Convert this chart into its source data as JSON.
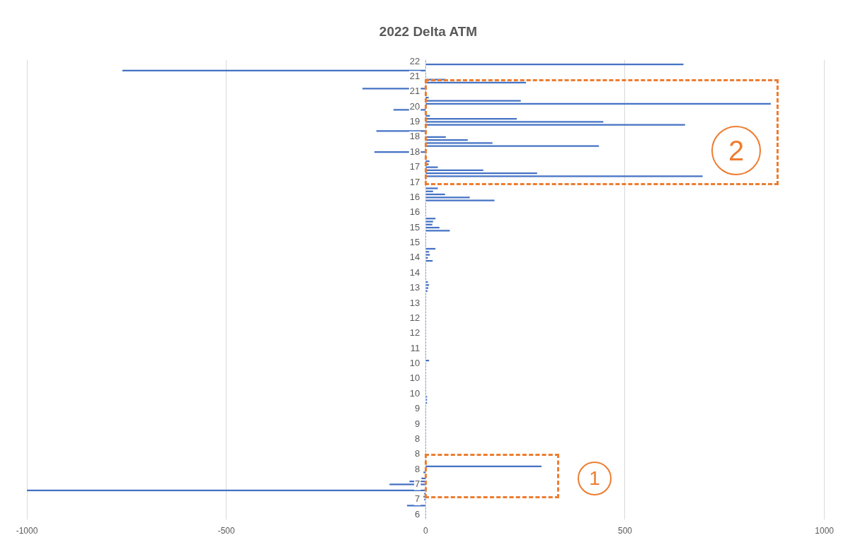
{
  "chart_data": {
    "type": "bar",
    "orientation": "horizontal",
    "title": "2022 Delta ATM",
    "categories": [
      "22",
      null,
      null,
      null,
      null,
      "21",
      null,
      null,
      null,
      null,
      "21",
      null,
      null,
      null,
      null,
      "20",
      null,
      null,
      null,
      null,
      "19",
      null,
      null,
      null,
      null,
      "18",
      null,
      null,
      null,
      null,
      "18",
      null,
      null,
      null,
      null,
      "17",
      null,
      null,
      null,
      null,
      "17",
      null,
      null,
      null,
      null,
      "16",
      null,
      null,
      null,
      null,
      "16",
      null,
      null,
      null,
      null,
      "15",
      null,
      null,
      null,
      null,
      "15",
      null,
      null,
      null,
      null,
      "14",
      null,
      null,
      null,
      null,
      "14",
      null,
      null,
      null,
      null,
      "13",
      null,
      null,
      null,
      null,
      "13",
      null,
      null,
      null,
      null,
      "12",
      null,
      null,
      null,
      null,
      "12",
      null,
      null,
      null,
      null,
      "11",
      null,
      null,
      null,
      null,
      "10",
      null,
      null,
      null,
      null,
      "10",
      null,
      null,
      null,
      null,
      "10",
      null,
      null,
      null,
      null,
      "9",
      null,
      null,
      null,
      null,
      "9",
      null,
      null,
      null,
      null,
      "8",
      null,
      null,
      null,
      null,
      "8",
      null,
      null,
      null,
      null,
      "8",
      null,
      null,
      null,
      null,
      "7",
      null,
      null,
      null,
      null,
      "7",
      null,
      null,
      null,
      null,
      "6",
      null
    ],
    "values": [
      0,
      646,
      0,
      -760,
      0,
      0,
      50,
      251,
      0,
      -158,
      0,
      0,
      7,
      238,
      865,
      0,
      -80,
      0,
      10,
      228,
      445,
      650,
      0,
      -123,
      0,
      50,
      105,
      167,
      434,
      0,
      -128,
      0,
      0,
      9,
      7,
      30,
      144,
      279,
      694,
      0,
      0,
      0,
      30,
      18,
      48,
      110,
      172,
      0,
      0,
      0,
      0,
      0,
      24,
      18,
      16,
      34,
      60,
      0,
      0,
      0,
      0,
      0,
      24,
      8,
      10,
      5,
      17,
      0,
      0,
      0,
      0,
      0,
      0,
      5,
      8,
      6,
      4,
      0,
      0,
      0,
      0,
      0,
      0,
      0,
      0,
      0,
      0,
      0,
      0,
      0,
      0,
      0,
      0,
      0,
      0,
      0,
      0,
      0,
      0,
      8,
      0,
      0,
      0,
      0,
      0,
      0,
      0,
      0,
      0,
      0,
      0,
      3,
      3,
      3,
      0,
      0,
      0,
      0,
      0,
      0,
      0,
      0,
      0,
      0,
      0,
      0,
      0,
      0,
      0,
      0,
      0,
      0,
      0,
      0,
      290,
      0,
      -5,
      0,
      -10,
      -40,
      -90,
      0,
      -1000,
      -3,
      -5,
      -3,
      0,
      -46,
      0,
      0,
      0,
      0
    ],
    "color": "#4472c4",
    "xlim": [
      -1000,
      1000
    ],
    "xticks": [
      {
        "value": -1000,
        "label": "-1000"
      },
      -500,
      0,
      500,
      {
        "value": 1000,
        "label": "1000"
      }
    ],
    "grid": "x",
    "annotations": [
      "1",
      "2"
    ]
  }
}
